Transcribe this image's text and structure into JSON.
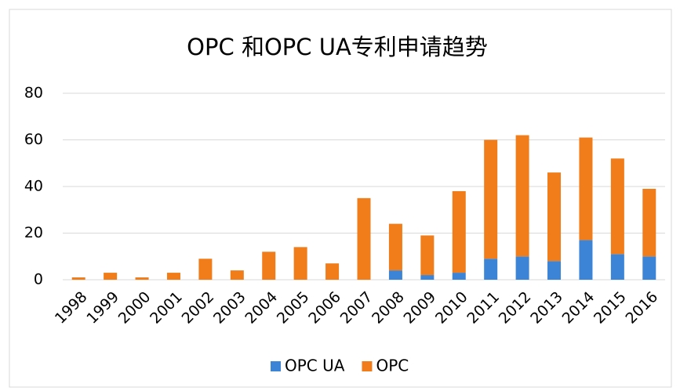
{
  "chart_data": {
    "type": "stacked_bar",
    "title": "OPC 和OPC UA专利申请趋势",
    "categories": [
      "1998",
      "1999",
      "2000",
      "2001",
      "2002",
      "2003",
      "2004",
      "2005",
      "2006",
      "2007",
      "2008",
      "2009",
      "2010",
      "2011",
      "2012",
      "2013",
      "2014",
      "2015",
      "2016"
    ],
    "series": [
      {
        "name": "OPC UA",
        "color": "#3b84d6",
        "values": [
          0,
          0,
          0,
          0,
          0,
          0,
          0,
          0,
          0,
          0,
          4,
          2,
          3,
          9,
          10,
          8,
          17,
          11,
          10
        ]
      },
      {
        "name": "OPC",
        "color": "#f07c1a",
        "values": [
          1,
          3,
          1,
          3,
          9,
          4,
          12,
          14,
          7,
          35,
          20,
          17,
          35,
          51,
          52,
          38,
          44,
          41,
          29
        ]
      }
    ],
    "ylim": [
      0,
      80
    ],
    "yticks": [
      0,
      20,
      40,
      60,
      80
    ],
    "grid": true,
    "legend": "bottom"
  }
}
